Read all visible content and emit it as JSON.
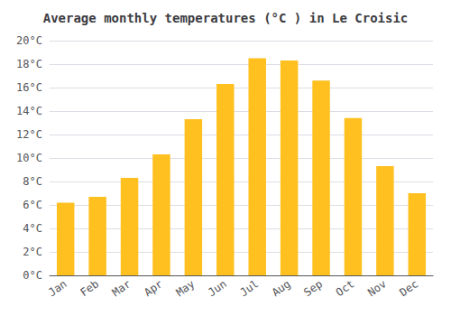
{
  "chart_data": {
    "type": "bar",
    "title": "Average monthly temperatures (°C ) in Le Croisic",
    "categories": [
      "Jan",
      "Feb",
      "Mar",
      "Apr",
      "May",
      "Jun",
      "Jul",
      "Aug",
      "Sep",
      "Oct",
      "Nov",
      "Dec"
    ],
    "values": [
      6.2,
      6.7,
      8.3,
      10.3,
      13.3,
      16.3,
      18.5,
      18.3,
      16.6,
      13.4,
      9.3,
      7.0
    ],
    "color": "#FFC020",
    "ylim": [
      0,
      20
    ],
    "yticks": [
      {
        "value": 0,
        "label": "0°C"
      },
      {
        "value": 2,
        "label": "2°C"
      },
      {
        "value": 4,
        "label": "4°C"
      },
      {
        "value": 6,
        "label": "6°C"
      },
      {
        "value": 8,
        "label": "8°C"
      },
      {
        "value": 10,
        "label": "10°C"
      },
      {
        "value": 12,
        "label": "12°C"
      },
      {
        "value": 14,
        "label": "14°C"
      },
      {
        "value": 16,
        "label": "16°C"
      },
      {
        "value": 18,
        "label": "18°C"
      },
      {
        "value": 20,
        "label": "20°C"
      }
    ],
    "grid": true
  }
}
